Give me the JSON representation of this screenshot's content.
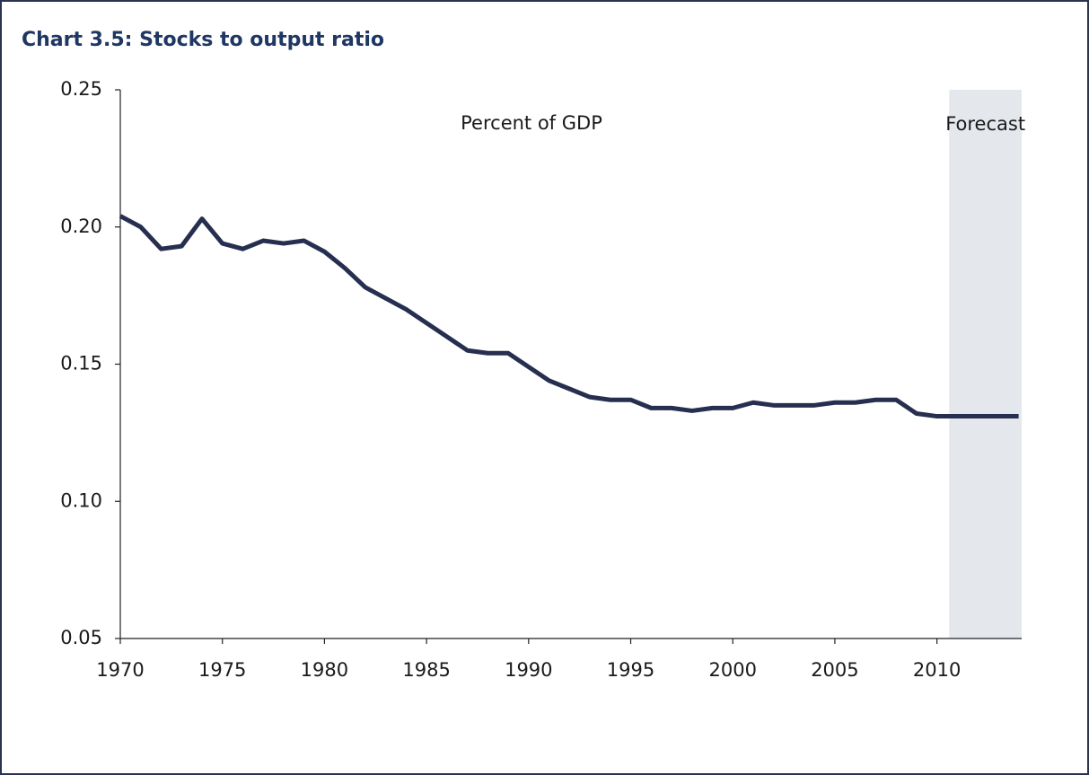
{
  "chart_data": {
    "type": "line",
    "title": "Chart 3.5: Stocks to output ratio",
    "annotation": "Percent of GDP",
    "shaded_region": {
      "label": "Forecast",
      "x": [
        2010.6,
        2014.15
      ],
      "color": "#e4e8ed"
    },
    "x": [
      1970,
      1971,
      1972,
      1973,
      1974,
      1975,
      1976,
      1977,
      1978,
      1979,
      1980,
      1981,
      1982,
      1983,
      1984,
      1985,
      1986,
      1987,
      1988,
      1989,
      1990,
      1991,
      1992,
      1993,
      1994,
      1995,
      1996,
      1997,
      1998,
      1999,
      2000,
      2001,
      2002,
      2003,
      2004,
      2005,
      2006,
      2007,
      2008,
      2009,
      2010,
      2011,
      2012,
      2013,
      2014
    ],
    "series": [
      {
        "name": "Stocks to output ratio",
        "color": "#262f4f",
        "values": [
          0.204,
          0.2,
          0.192,
          0.193,
          0.203,
          0.194,
          0.192,
          0.195,
          0.194,
          0.195,
          0.191,
          0.185,
          0.178,
          0.174,
          0.17,
          0.165,
          0.16,
          0.155,
          0.154,
          0.154,
          0.149,
          0.144,
          0.141,
          0.138,
          0.137,
          0.137,
          0.134,
          0.134,
          0.133,
          0.134,
          0.134,
          0.136,
          0.135,
          0.135,
          0.135,
          0.136,
          0.136,
          0.137,
          0.137,
          0.132,
          0.131,
          0.131,
          0.131,
          0.131,
          0.131
        ]
      }
    ],
    "xlim": [
      1970,
      2014.15
    ],
    "xticks": [
      1970,
      1975,
      1980,
      1985,
      1990,
      1995,
      2000,
      2005,
      2010
    ],
    "ylim": [
      0.05,
      0.25
    ],
    "yticks": [
      0.05,
      {
        "value": 0.1,
        "label": "0.10"
      },
      0.15,
      {
        "value": 0.2,
        "label": "0.20"
      },
      0.25
    ],
    "grid": false
  }
}
